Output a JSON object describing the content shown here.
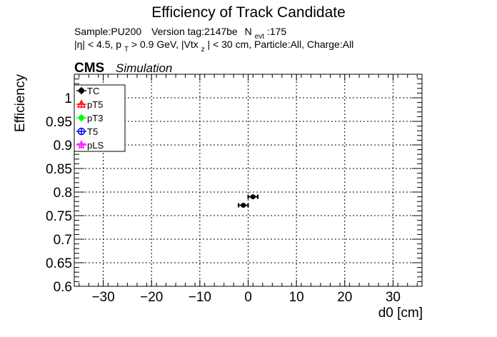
{
  "chart_data": {
    "type": "scatter",
    "title": "Efficiency of Track Candidate",
    "info_line1": {
      "sample": "Sample:PU200",
      "version": "Version tag:2147be",
      "nevt_prefix": "N",
      "nevt_sub": "evt",
      "nevt_value": ":175"
    },
    "info_line2": {
      "part1": "|η| < 4.5, p",
      "sub1": "T",
      "part2": " > 0.9 GeV, |Vtx",
      "sub2": "z",
      "part3": "| < 30 cm, Particle:All, Charge:All"
    },
    "cms_label": "CMS",
    "cms_sublabel": "Simulation",
    "xlabel": "d0 [cm]",
    "ylabel": "Efficiency",
    "xlim": [
      -36,
      36
    ],
    "ylim": [
      0.6,
      1.05
    ],
    "x_ticks": [
      -30,
      -20,
      -10,
      0,
      10,
      20,
      30
    ],
    "x_tick_labels": [
      "−30",
      "−20",
      "−10",
      "0",
      "10",
      "20",
      "30"
    ],
    "y_ticks": [
      0.6,
      0.65,
      0.7,
      0.75,
      0.8,
      0.85,
      0.9,
      0.95,
      1.0
    ],
    "y_tick_labels": [
      "0.6",
      "0.65",
      "0.7",
      "0.75",
      "0.8",
      "0.85",
      "0.9",
      "0.95",
      "1"
    ],
    "grid": true,
    "legend_position": "top-left",
    "series": [
      {
        "name": "TC",
        "color": "#000000",
        "marker": "filled-circle",
        "x": [
          -1.0,
          1.0
        ],
        "y": [
          0.772,
          0.79
        ],
        "xerr": [
          1.0,
          1.0
        ],
        "yerr": [
          0.004,
          0.004
        ]
      },
      {
        "name": "pT5",
        "color": "#ff0000",
        "marker": "open-triangle",
        "x": [],
        "y": []
      },
      {
        "name": "pT3",
        "color": "#00ff00",
        "marker": "filled-circle",
        "x": [],
        "y": []
      },
      {
        "name": "T5",
        "color": "#0000ff",
        "marker": "open-circle",
        "x": [],
        "y": []
      },
      {
        "name": "pLS",
        "color": "#ff00ff",
        "marker": "open-star",
        "x": [],
        "y": []
      }
    ]
  }
}
